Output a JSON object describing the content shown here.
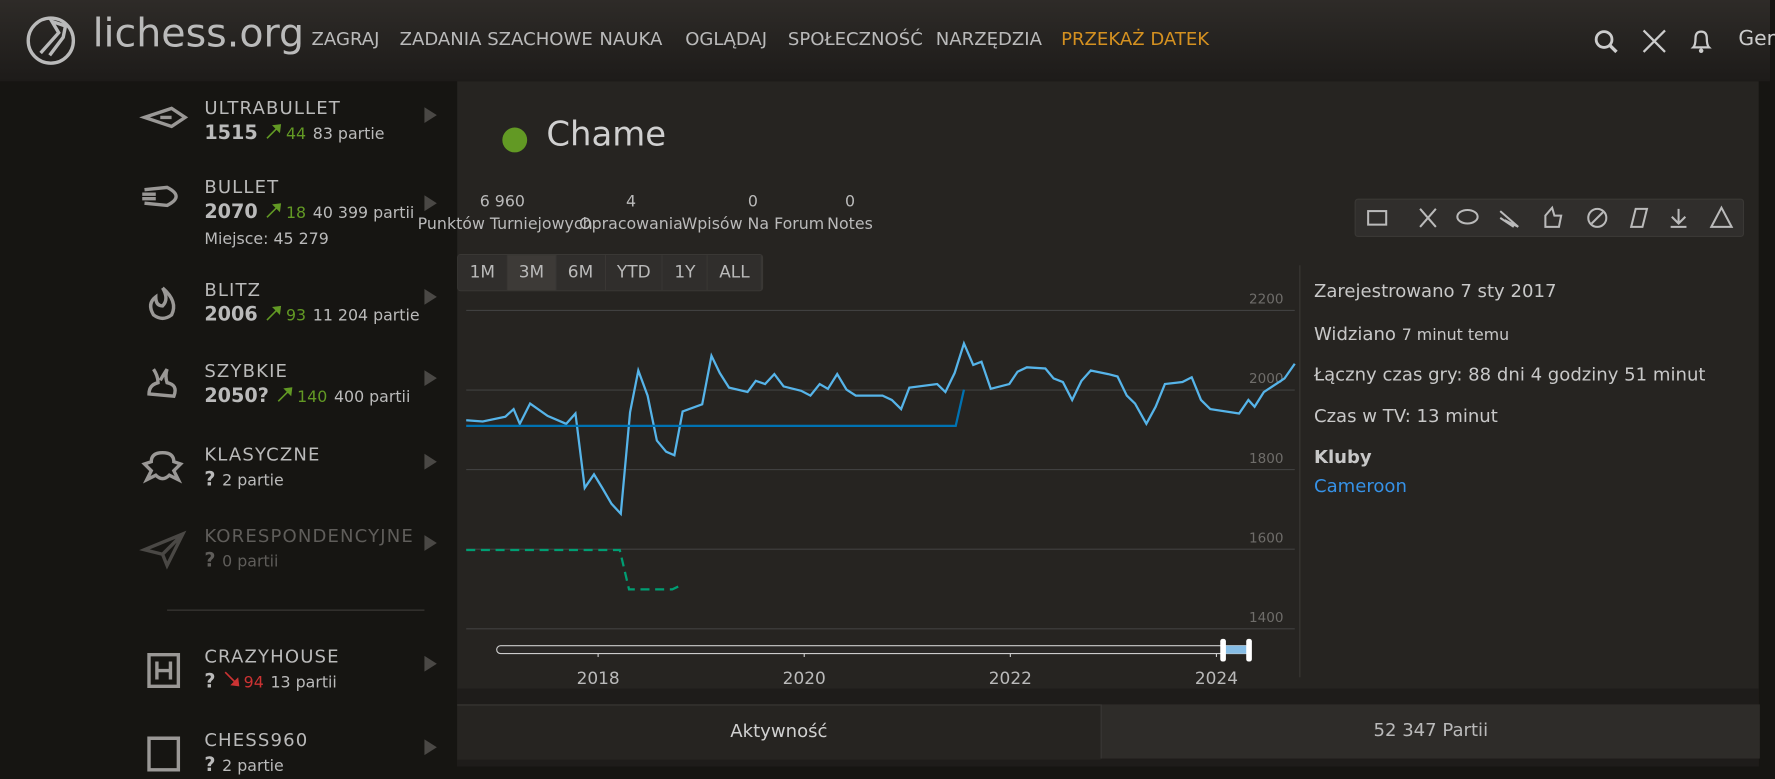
{
  "header": {
    "logo": "lichess.org",
    "nav": [
      "ZAGRAJ",
      "ZADANIA SZACHOWE",
      "NAUKA",
      "OGLĄDAJ",
      "SPOŁECZNOŚĆ",
      "NARZĘDZIA",
      "PRZEKAŻ DATEK"
    ],
    "user": "Ger"
  },
  "perfs": [
    {
      "name": "ULTRABULLET",
      "rating": "1515",
      "trend": "up",
      "progress": "44",
      "games": "83 partie"
    },
    {
      "name": "BULLET",
      "rating": "2070",
      "trend": "up",
      "progress": "18",
      "games": "40 399 partii",
      "rank": "Miejsce: 45 279"
    },
    {
      "name": "BLITZ",
      "rating": "2006",
      "trend": "up",
      "progress": "93",
      "games": "11 204 partie"
    },
    {
      "name": "SZYBKIE",
      "rating": "2050?",
      "trend": "up",
      "progress": "140",
      "games": "400 partii"
    },
    {
      "name": "KLASYCZNE",
      "rating": "?",
      "games": "2 partie"
    },
    {
      "name": "KORESPONDENCYJNE",
      "rating": "?",
      "games": "0 partii",
      "dim": true
    },
    {
      "name": "CRAZYHOUSE",
      "rating": "?",
      "trend": "down",
      "progress": "94",
      "games": "13 partii"
    },
    {
      "name": "CHESS960",
      "rating": "?",
      "games": "2 partie"
    }
  ],
  "profile": {
    "username": "Chame",
    "stats": [
      {
        "value": "6 960",
        "label": "Punktów Turniejowych"
      },
      {
        "value": "4",
        "label": "Opracowania"
      },
      {
        "value": "0",
        "label": "Wpisów Na Forum"
      },
      {
        "value": "0",
        "label": "Notes"
      }
    ],
    "registered": "Zarejestrowano 7 sty 2017",
    "seen_label": "Widziano",
    "seen": "7 minut temu",
    "playtime": "Łączny czas gry: 88 dni 4 godziny 51 minut",
    "tv": "Czas w TV: 13 minut",
    "clubs_title": "Kluby",
    "club": "Cameroon"
  },
  "ranges": [
    "1M",
    "3M",
    "6M",
    "YTD",
    "1Y",
    "ALL"
  ],
  "tabs": [
    "Aktywność",
    "52 347 Partii"
  ],
  "chart_data": {
    "type": "line",
    "xlim": [
      2016.72,
      2024.76
    ],
    "ylim": [
      1400,
      2200
    ],
    "xticks": [
      2018,
      2020,
      2022,
      2024
    ],
    "yticks": [
      1400,
      1600,
      1800,
      2000,
      2200
    ],
    "grid": true,
    "series": [
      {
        "color": "#56b4e9",
        "x": [
          2016.72,
          2016.88,
          2017.1,
          2017.18,
          2017.24,
          2017.34,
          2017.51,
          2017.69,
          2017.78,
          2017.87,
          2017.96,
          2018.04,
          2018.13,
          2018.22,
          2018.31,
          2018.39,
          2018.48,
          2018.57,
          2018.66,
          2018.74,
          2018.82,
          2019.01,
          2019.1,
          2019.18,
          2019.27,
          2019.45,
          2019.53,
          2019.62,
          2019.71,
          2019.8,
          2019.97,
          2020.06,
          2020.15,
          2020.23,
          2020.32,
          2020.41,
          2020.5,
          2020.76,
          2020.85,
          2020.94,
          2021.02,
          2021.29,
          2021.37,
          2021.46,
          2021.55,
          2021.64,
          2021.72,
          2021.81,
          2021.99,
          2022.07,
          2022.16,
          2022.34,
          2022.42,
          2022.51,
          2022.6,
          2022.69,
          2022.78,
          2022.95,
          2023.04,
          2023.13,
          2023.21,
          2023.32,
          2023.41,
          2023.5,
          2023.67,
          2023.76,
          2023.85,
          2023.94,
          2024.22,
          2024.31,
          2024.37,
          2024.46,
          2024.66,
          2024.76
        ],
        "values": [
          1924,
          1921,
          1933,
          1952,
          1915,
          1966,
          1935,
          1915,
          1941,
          1754,
          1788,
          1754,
          1714,
          1689,
          1944,
          2049,
          1986,
          1873,
          1845,
          1836,
          1946,
          1964,
          2086,
          2043,
          2006,
          1995,
          2023,
          2015,
          2040,
          2009,
          1998,
          1986,
          2015,
          2003,
          2040,
          2001,
          1986,
          1986,
          1975,
          1952,
          2006,
          2015,
          1995,
          2043,
          2117,
          2063,
          2071,
          2003,
          2015,
          2046,
          2057,
          2054,
          2029,
          2020,
          1975,
          2023,
          2049,
          2040,
          2034,
          1986,
          1966,
          1915,
          1958,
          2015,
          2020,
          2032,
          1975,
          1952,
          1941,
          1975,
          1958,
          1995,
          2029,
          2066
        ]
      },
      {
        "color": "#0072b2",
        "x": [
          2016.72,
          2021.47,
          2021.55
        ],
        "values": [
          1910,
          1910,
          2001
        ]
      },
      {
        "color": "#009e73",
        "dashed": true,
        "x": [
          2016.72,
          2018.21,
          2018.3,
          2018.72,
          2018.81
        ],
        "values": [
          1598,
          1598,
          1499,
          1499,
          1510
        ]
      }
    ]
  }
}
